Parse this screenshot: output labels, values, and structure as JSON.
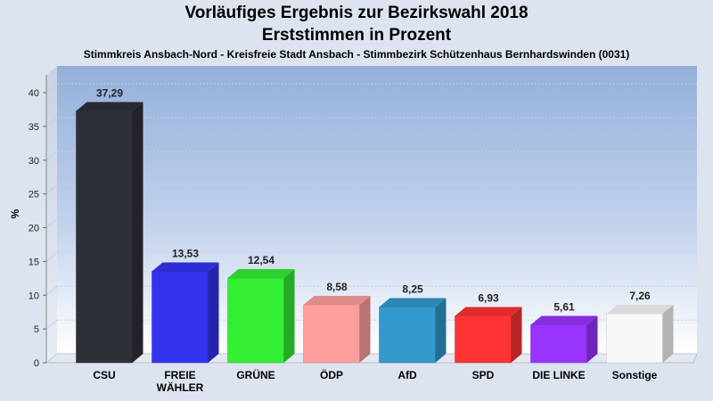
{
  "chart_data": {
    "type": "bar",
    "title": "Vorläufiges Ergebnis zur Bezirkswahl 2018",
    "subtitle": "Erststimmen in Prozent",
    "caption": "Stimmkreis Ansbach-Nord - Kreisfreie Stadt Ansbach - Stimmbezirk Schützenhaus Bernhardswinden (0031)",
    "ylabel": "%",
    "xlabel": "",
    "ylim": [
      0,
      40
    ],
    "yticks": [
      0,
      5,
      10,
      15,
      20,
      25,
      30,
      35,
      40
    ],
    "grid": true,
    "categories": [
      "CSU",
      "FREIE\nWÄHLER",
      "GRÜNE",
      "ÖDP",
      "AfD",
      "SPD",
      "DIE LINKE",
      "Sonstige"
    ],
    "values": [
      37.29,
      13.53,
      12.54,
      8.58,
      8.25,
      6.93,
      5.61,
      7.26
    ],
    "value_labels": [
      "37,29",
      "13,53",
      "12,54",
      "8,58",
      "8,25",
      "6,93",
      "5,61",
      "7,26"
    ],
    "colors": [
      "#2e3038",
      "#3333ee",
      "#33ee33",
      "#ff9e9e",
      "#3399cc",
      "#ff3333",
      "#9933ff",
      "#f8f8f8"
    ]
  }
}
